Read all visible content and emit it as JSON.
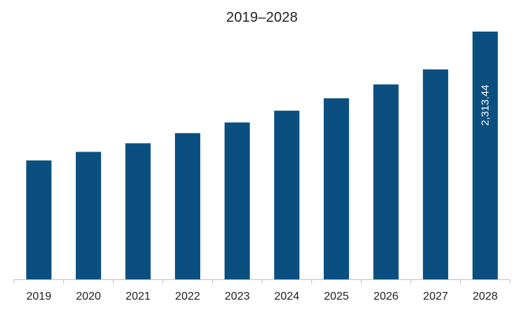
{
  "chart_data": {
    "type": "bar",
    "title": "2019–2028",
    "xlabel": "",
    "ylabel": "",
    "categories": [
      "2019",
      "2020",
      "2021",
      "2022",
      "2023",
      "2024",
      "2025",
      "2026",
      "2027",
      "2028"
    ],
    "values": [
      1110,
      1190,
      1270,
      1365,
      1465,
      1575,
      1690,
      1820,
      1960,
      2313.44
    ],
    "data_labels": [
      "",
      "",
      "",
      "",
      "",
      "",
      "",
      "",
      "",
      "2,313.44"
    ],
    "ylim": [
      0,
      2313.44
    ],
    "y_axis_visible": false,
    "grid": false,
    "legend": "none",
    "colors": {
      "bar": "#0a4f80",
      "axis": "#bfbfbf",
      "text": "#222222",
      "data_label": "#ffffff"
    }
  }
}
